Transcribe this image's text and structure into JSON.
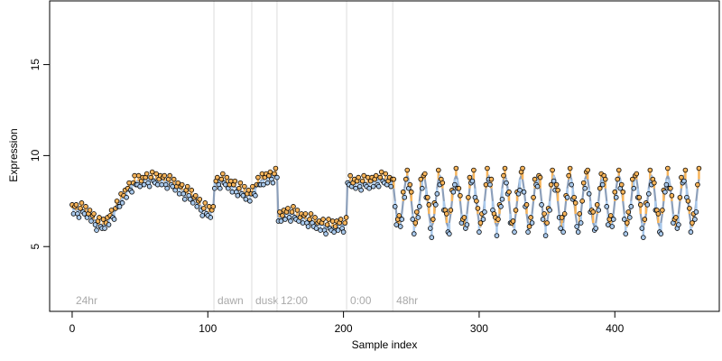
{
  "chart_data": {
    "type": "scatter",
    "x_label": "Sample index",
    "y_label": "Expression",
    "xlim": [
      -16.6,
      477
    ],
    "ylim": [
      1.44,
      18.5
    ],
    "xticks": [
      0,
      100,
      200,
      300,
      400
    ],
    "yticks": [
      5,
      10,
      15
    ],
    "above_color": "#f7b45a",
    "below_color": "#a9c9ec",
    "point_edge": "#000000",
    "annotations": [
      {
        "x": 0,
        "label": "24hr",
        "line": false
      },
      {
        "x": 104.5,
        "label": "dawn",
        "line": true
      },
      {
        "x": 132.4,
        "label": "dusk",
        "line": true
      },
      {
        "x": 151,
        "label": "12:00",
        "line": true
      },
      {
        "x": 202.3,
        "label": "0:00",
        "line": true
      },
      {
        "x": 236.3,
        "label": "48hr",
        "line": true
      }
    ],
    "x": [
      0,
      1,
      2,
      3,
      4,
      5,
      6,
      7,
      8,
      9,
      10,
      11,
      12,
      13,
      14,
      15,
      16,
      17,
      18,
      19,
      20,
      21,
      22,
      23,
      24,
      25,
      26,
      27,
      28,
      29,
      30,
      31,
      32,
      33,
      34,
      35,
      36,
      37,
      38,
      39,
      40,
      41,
      42,
      43,
      44,
      45,
      46,
      47,
      48,
      49,
      50,
      51,
      52,
      53,
      54,
      55,
      56,
      57,
      58,
      59,
      60,
      61,
      62,
      63,
      64,
      65,
      66,
      67,
      68,
      69,
      70,
      71,
      72,
      73,
      74,
      75,
      76,
      77,
      78,
      79,
      80,
      81,
      82,
      83,
      84,
      85,
      86,
      87,
      88,
      89,
      90,
      91,
      92,
      93,
      94,
      95,
      96,
      97,
      98,
      99,
      100,
      101,
      102,
      103,
      104,
      105,
      106,
      107,
      108,
      109,
      110,
      111,
      112,
      113,
      114,
      115,
      116,
      117,
      118,
      119,
      120,
      121,
      122,
      123,
      124,
      125,
      126,
      127,
      128,
      129,
      130,
      131,
      132,
      133,
      134,
      135,
      136,
      137,
      138,
      139,
      140,
      141,
      142,
      143,
      144,
      145,
      146,
      147,
      148,
      149,
      150,
      151,
      152,
      153,
      154,
      155,
      156,
      157,
      158,
      159,
      160,
      161,
      162,
      163,
      164,
      165,
      166,
      167,
      168,
      169,
      170,
      171,
      172,
      173,
      174,
      175,
      176,
      177,
      178,
      179,
      180,
      181,
      182,
      183,
      184,
      185,
      186,
      187,
      188,
      189,
      190,
      191,
      192,
      193,
      194,
      195,
      196,
      197,
      198,
      199,
      200,
      201,
      202,
      203,
      204,
      205,
      206,
      207,
      208,
      209,
      210,
      211,
      212,
      213,
      214,
      215,
      216,
      217,
      218,
      219,
      220,
      221,
      222,
      223,
      224,
      225,
      226,
      227,
      228,
      229,
      230,
      231,
      232,
      233,
      234,
      235,
      236,
      237,
      238,
      239,
      240,
      241,
      242,
      243,
      244,
      245,
      246,
      247,
      248,
      249,
      250,
      251,
      252,
      253,
      254,
      255,
      256,
      257,
      258,
      259,
      260,
      261,
      262,
      263,
      264,
      265,
      266,
      267,
      268,
      269,
      270,
      271,
      272,
      273,
      274,
      275,
      276,
      277,
      278,
      279,
      280,
      281,
      282,
      283,
      284,
      285,
      286,
      287,
      288,
      289,
      290,
      291,
      292,
      293,
      294,
      295,
      296,
      297,
      298,
      299,
      300,
      301,
      302,
      303,
      304,
      305,
      306,
      307,
      308,
      309,
      310,
      311,
      312,
      313,
      314,
      315,
      316,
      317,
      318,
      319,
      320,
      321,
      322,
      323,
      324,
      325,
      326,
      327,
      328,
      329,
      330,
      331,
      332,
      333,
      334,
      335,
      336,
      337,
      338,
      339,
      340,
      341,
      342,
      343,
      344,
      345,
      346,
      347,
      348,
      349,
      350,
      351,
      352,
      353,
      354,
      355,
      356,
      357,
      358,
      359,
      360,
      361,
      362,
      363,
      364,
      365,
      366,
      367,
      368,
      369,
      370,
      371,
      372,
      373,
      374,
      375,
      376,
      377,
      378,
      379,
      380,
      381,
      382,
      383,
      384,
      385,
      386,
      387,
      388,
      389,
      390,
      391,
      392,
      393,
      394,
      395,
      396,
      397,
      398,
      399,
      400,
      401,
      402,
      403,
      404,
      405,
      406,
      407,
      408,
      409,
      410,
      411,
      412,
      413,
      414,
      415,
      416,
      417,
      418,
      419,
      420,
      421,
      422,
      423,
      424,
      425,
      426,
      427,
      428,
      429,
      430,
      431,
      432,
      433,
      434,
      435,
      436,
      437,
      438,
      439,
      440,
      441,
      442,
      443,
      444,
      445,
      446,
      447,
      448,
      449,
      450,
      451,
      452,
      453,
      454,
      455,
      456,
      457,
      458,
      459,
      460,
      461,
      462
    ],
    "values": [
      7.3,
      6.8,
      7.2,
      7.3,
      6.8,
      6.6,
      7.1,
      7.4,
      6.9,
      6.8,
      7.2,
      6.6,
      6.8,
      7.0,
      6.4,
      6.7,
      6.8,
      6.2,
      5.9,
      6.4,
      6.6,
      6.1,
      6.0,
      6.5,
      6.0,
      6.3,
      6.6,
      6.2,
      6.7,
      7.0,
      6.6,
      6.5,
      7.1,
      7.5,
      7.2,
      7.2,
      7.9,
      7.4,
      7.8,
      8.1,
      7.7,
      8.2,
      8.5,
      8.1,
      8.0,
      8.5,
      8.9,
      8.4,
      8.4,
      8.9,
      8.3,
      8.6,
      8.8,
      8.4,
      8.8,
      9.0,
      8.5,
      8.3,
      8.8,
      9.1,
      8.6,
      8.5,
      9.0,
      8.4,
      8.7,
      8.9,
      8.4,
      8.8,
      8.9,
      8.4,
      8.2,
      8.7,
      8.9,
      8.4,
      8.3,
      8.7,
      8.1,
      8.3,
      8.5,
      7.9,
      8.3,
      8.4,
      7.9,
      7.6,
      8.1,
      8.3,
      7.8,
      7.6,
      8.1,
      7.4,
      7.7,
      7.8,
      7.2,
      7.5,
      7.6,
      7.0,
      6.7,
      7.1,
      7.4,
      6.8,
      6.7,
      7.2,
      6.6,
      7.0,
      7.2,
      8.2,
      8.6,
      8.8,
      8.4,
      8.2,
      8.7,
      9.0,
      8.5,
      8.4,
      8.8,
      8.2,
      8.4,
      8.6,
      8.0,
      8.4,
      8.6,
      8.0,
      7.8,
      8.2,
      8.5,
      7.9,
      7.8,
      8.3,
      7.6,
      7.9,
      8.1,
      7.5,
      7.9,
      8.3,
      7.9,
      7.8,
      8.4,
      8.8,
      8.4,
      8.4,
      9.0,
      8.4,
      8.8,
      9.0,
      8.5,
      8.9,
      9.1,
      8.7,
      8.5,
      9.0,
      9.3,
      8.8,
      6.4,
      6.9,
      6.4,
      6.7,
      7.0,
      6.5,
      6.9,
      7.1,
      6.6,
      6.4,
      6.9,
      7.2,
      6.6,
      6.5,
      7.0,
      6.4,
      6.6,
      6.8,
      6.3,
      6.7,
      6.8,
      6.3,
      6.1,
      6.5,
      6.8,
      6.3,
      6.1,
      6.6,
      6.0,
      6.3,
      6.4,
      5.9,
      6.3,
      6.5,
      5.9,
      5.7,
      6.2,
      6.5,
      6.0,
      5.9,
      6.4,
      5.8,
      6.1,
      6.4,
      5.9,
      6.3,
      6.5,
      6.0,
      5.8,
      6.3,
      6.6,
      8.5,
      8.4,
      8.9,
      8.3,
      8.5,
      8.7,
      8.2,
      8.6,
      8.8,
      8.3,
      8.1,
      8.6,
      8.9,
      8.4,
      8.3,
      8.8,
      8.2,
      8.6,
      8.8,
      8.3,
      8.7,
      8.9,
      8.4,
      8.3,
      8.8,
      9.1,
      8.6,
      8.5,
      9.0,
      8.4,
      8.6,
      8.8,
      8.3,
      8.7,
      8.7,
      7.2,
      6.2,
      6.5,
      6.7,
      6.1,
      6.5,
      8.0,
      7.7,
      8.7,
      9.2,
      8.2,
      8.4,
      8.0,
      6.5,
      5.7,
      6.3,
      6.9,
      6.6,
      7.2,
      8.7,
      8.2,
      8.9,
      9.0,
      7.7,
      7.7,
      7.3,
      6.0,
      5.5,
      6.5,
      7.4,
      7.3,
      7.9,
      9.2,
      8.4,
      8.7,
      8.5,
      7.0,
      7.0,
      6.8,
      5.8,
      5.7,
      7.0,
      8.1,
      8.0,
      8.4,
      9.3,
      8.2,
      8.2,
      7.8,
      6.3,
      6.5,
      6.6,
      6.0,
      6.2,
      7.7,
      8.8,
      8.5,
      8.6,
      9.2,
      7.7,
      7.5,
      7.1,
      5.8,
      6.3,
      6.8,
      6.5,
      6.9,
      8.4,
      9.3,
      8.7,
      8.4,
      8.7,
      7.0,
      6.8,
      6.6,
      5.6,
      6.5,
      7.3,
      7.2,
      7.6,
      8.9,
      9.3,
      8.5,
      7.9,
      8.0,
      6.3,
      6.3,
      6.4,
      5.8,
      7.0,
      8.0,
      7.9,
      8.1,
      9.1,
      9.3,
      8.0,
      7.2,
      7.3,
      5.8,
      6.1,
      6.6,
      6.3,
      7.7,
      8.7,
      8.4,
      8.3,
      8.9,
      8.8,
      7.3,
      6.5,
      6.8,
      5.6,
      6.3,
      7.1,
      7.0,
      8.4,
      9.2,
      8.6,
      8.1,
      8.4,
      8.1,
      6.6,
      6.0,
      6.6,
      5.8,
      6.8,
      7.8,
      7.7,
      8.9,
      9.3,
      8.4,
      7.6,
      7.7,
      7.4,
      6.1,
      5.8,
      6.8,
      6.3,
      7.5,
      8.5,
      8.2,
      9.1,
      9.2,
      7.9,
      6.9,
      7.0,
      6.9,
      5.9,
      6.0,
      7.3,
      7.0,
      8.2,
      9.0,
      8.4,
      8.9,
      8.7,
      7.2,
      6.2,
      6.5,
      6.7,
      6.1,
      6.5,
      8.0,
      7.7,
      8.7,
      9.2,
      8.2,
      8.4,
      8.0,
      6.5,
      5.7,
      6.3,
      6.9,
      6.6,
      7.2,
      8.7,
      8.2,
      8.9,
      9.0,
      7.7,
      7.7,
      7.3,
      6.0,
      5.5,
      6.5,
      7.4,
      7.3,
      7.9,
      9.2,
      8.4,
      8.7,
      8.5,
      7.0,
      7.0,
      6.8,
      5.8,
      5.7,
      7.0,
      8.1,
      8.0,
      8.4,
      9.3,
      8.2,
      8.2,
      7.8,
      6.3,
      6.5,
      6.6,
      6.0,
      6.2,
      7.7,
      8.8,
      8.5,
      8.6,
      9.2,
      7.7,
      7.5,
      7.1,
      5.8,
      6.3,
      6.8,
      6.5,
      6.9,
      8.4,
      9.3
    ],
    "fit": {
      "color": "#8c9fba",
      "values": [
        7.1,
        7.1,
        7.1,
        7.0,
        7.0,
        7.0,
        7.0,
        7.0,
        7.0,
        7.0,
        6.9,
        6.9,
        6.8,
        6.8,
        6.7,
        6.6,
        6.5,
        6.4,
        6.3,
        6.3,
        6.2,
        6.2,
        6.2,
        6.2,
        6.3,
        6.3,
        6.4,
        6.5,
        6.6,
        6.7,
        6.8,
        6.9,
        7.0,
        7.1,
        7.3,
        7.4,
        7.6,
        7.7,
        7.8,
        7.9,
        8.0,
        8.1,
        8.2,
        8.3,
        8.4,
        8.4,
        8.5,
        8.5,
        8.6,
        8.6,
        8.6,
        8.6,
        8.6,
        8.7,
        8.7,
        8.7,
        8.7,
        8.7,
        8.7,
        8.7,
        8.7,
        8.7,
        8.7,
        8.7,
        8.7,
        8.7,
        8.7,
        8.7,
        8.6,
        8.6,
        8.6,
        8.6,
        8.5,
        8.5,
        8.5,
        8.4,
        8.4,
        8.3,
        8.3,
        8.2,
        8.2,
        8.1,
        8.1,
        8.0,
        8.0,
        7.9,
        7.9,
        7.8,
        7.8,
        7.7,
        7.7,
        7.6,
        7.5,
        7.4,
        7.3,
        7.2,
        7.1,
        7.0,
        7.0,
        6.9,
        6.9,
        6.9,
        6.9,
        7.0,
        7.0,
        8.5,
        8.5,
        8.5,
        8.6,
        8.6,
        8.6,
        8.6,
        8.6,
        8.6,
        8.5,
        8.5,
        8.4,
        8.4,
        8.3,
        8.3,
        8.3,
        8.2,
        8.2,
        8.1,
        8.1,
        8.0,
        8.0,
        8.0,
        7.9,
        7.9,
        7.9,
        7.8,
        7.8,
        8.0,
        8.1,
        8.2,
        8.3,
        8.4,
        8.5,
        8.6,
        8.7,
        8.7,
        8.8,
        8.8,
        8.8,
        8.8,
        8.8,
        8.9,
        8.9,
        8.9,
        8.9,
        8.9,
        6.6,
        6.6,
        6.7,
        6.7,
        6.8,
        6.8,
        6.8,
        6.8,
        6.8,
        6.8,
        6.8,
        6.8,
        6.7,
        6.7,
        6.7,
        6.7,
        6.6,
        6.6,
        6.6,
        6.6,
        6.5,
        6.5,
        6.5,
        6.4,
        6.4,
        6.4,
        6.3,
        6.3,
        6.3,
        6.3,
        6.2,
        6.2,
        6.2,
        6.2,
        6.1,
        6.1,
        6.1,
        6.1,
        6.1,
        6.1,
        6.1,
        6.1,
        6.1,
        6.2,
        6.2,
        6.2,
        6.2,
        6.2,
        6.2,
        6.2,
        6.2,
        8.6,
        8.6,
        8.6,
        8.6,
        8.5,
        8.5,
        8.5,
        8.5,
        8.5,
        8.5,
        8.5,
        8.5,
        8.5,
        8.5,
        8.5,
        8.5,
        8.5,
        8.6,
        8.6,
        8.6,
        8.6,
        8.6,
        8.6,
        8.7,
        8.7,
        8.7,
        8.7,
        8.7,
        8.7,
        8.7,
        8.6,
        8.6,
        8.6,
        8.6,
        8.2,
        7.5,
        6.8,
        6.3,
        6.1,
        6.3,
        6.8,
        7.5,
        8.2,
        8.7,
        8.9,
        8.7,
        8.2,
        7.5,
        6.8,
        6.3,
        6.1,
        6.3,
        6.8,
        7.5,
        8.2,
        8.7,
        8.9,
        8.7,
        8.2,
        7.5,
        6.8,
        6.3,
        6.1,
        6.3,
        6.8,
        7.5,
        8.2,
        8.7,
        8.9,
        8.7,
        8.2,
        7.5,
        6.8,
        6.3,
        6.1,
        6.3,
        6.8,
        7.5,
        8.2,
        8.7,
        8.9,
        8.7,
        8.2,
        7.5,
        6.8,
        6.3,
        6.1,
        6.3,
        6.8,
        7.5,
        8.2,
        8.7,
        8.9,
        8.7,
        8.2,
        7.5,
        6.8,
        6.3,
        6.1,
        6.3,
        6.8,
        7.5,
        8.2,
        8.7,
        8.9,
        8.7,
        8.2,
        7.5,
        6.8,
        6.3,
        6.1,
        6.3,
        6.8,
        7.5,
        8.2,
        8.7,
        8.9,
        8.7,
        8.2,
        7.5,
        6.8,
        6.3,
        6.1,
        6.3,
        6.8,
        7.5,
        8.2,
        8.7,
        8.9,
        8.7,
        8.2,
        7.5,
        6.8,
        6.3,
        6.1,
        6.3,
        6.8,
        7.5,
        8.2,
        8.7,
        8.9,
        8.7,
        8.2,
        7.5,
        6.8,
        6.3,
        6.1,
        6.3,
        6.8,
        7.5,
        8.2,
        8.7,
        8.9,
        8.7,
        8.2,
        7.5,
        6.8,
        6.3,
        6.1,
        6.3,
        6.8,
        7.5,
        8.2,
        8.7,
        8.9,
        8.7,
        8.2,
        7.5,
        6.8,
        6.3,
        6.1,
        6.3,
        6.8,
        7.5,
        8.2,
        8.7,
        8.9,
        8.7,
        8.2,
        7.5,
        6.8,
        6.3,
        6.1,
        6.3,
        6.8,
        7.5,
        8.2,
        8.7,
        8.9,
        8.7,
        8.2,
        7.5,
        6.8,
        6.3,
        6.1,
        6.3,
        6.8,
        7.5,
        8.2,
        8.7,
        8.9,
        8.7,
        8.2,
        7.5,
        6.8,
        6.3,
        6.1,
        6.3,
        6.8,
        7.5,
        8.2,
        8.7,
        8.9,
        8.7,
        8.2,
        7.5,
        6.8,
        6.3,
        6.1,
        6.3,
        6.8,
        7.5,
        8.2,
        8.7,
        8.9,
        8.7,
        8.2,
        7.5,
        6.8,
        6.3,
        6.1,
        6.3,
        6.8,
        7.5,
        8.2,
        8.7,
        8.9,
        8.7,
        8.2,
        7.5,
        6.8,
        6.3,
        6.1,
        6.3,
        6.8,
        7.5,
        8.2,
        8.7,
        8.9,
        8.7,
        8.2,
        7.5,
        6.8,
        6.3,
        6.1,
        6.3,
        6.8,
        7.5,
        8.2,
        8.7
      ]
    }
  }
}
